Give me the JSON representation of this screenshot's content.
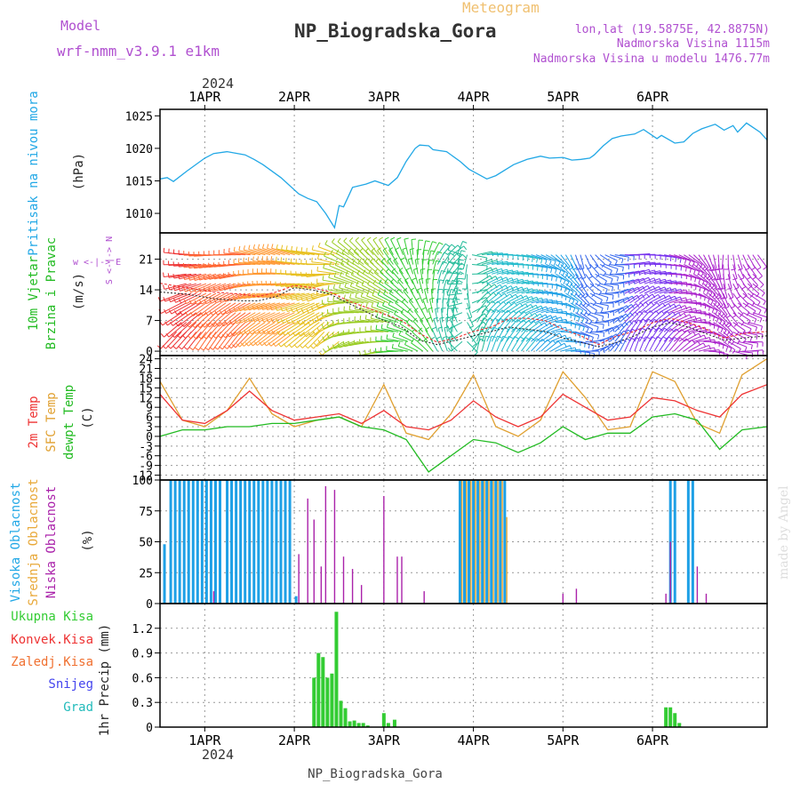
{
  "header": {
    "model_label": "Model",
    "model_name": "wrf-nmm_v3.9.1 e1km",
    "title": "NP_Biogradska_Gora",
    "subtitle": "Meteogram",
    "coords": "lon,lat (19.5875E, 42.8875N)",
    "altitude": "Nadmorska Visina 1115m",
    "model_altitude": "Nadmorska Visina u modelu 1476.77m",
    "year": "2024",
    "footer_title": "NP_Biogradska_Gora",
    "watermark": "made by Angel"
  },
  "colors": {
    "pressure": "#22a8e6",
    "temp2m": "#ee3333",
    "sfc": "#e0a030",
    "dewpt": "#22bb22",
    "high_cloud": "#1ea0e6",
    "mid_cloud": "#e8a838",
    "low_cloud": "#aa22aa",
    "total_precip": "#33cc33",
    "conv_precip": "#ee3333",
    "frz_precip": "#f07030",
    "snow": "#4444ee",
    "hail": "#22bbbb",
    "label_purple": "#b050d0"
  },
  "chart_data": [
    {
      "type": "line",
      "panel": "pressure",
      "ylabel": "Pritisak na nivou mora",
      "unit": "(hPa)",
      "ylim": [
        1007,
        1026
      ],
      "yticks": [
        1010,
        1015,
        1020,
        1025
      ],
      "x_days": [
        0,
        0.08,
        0.15,
        0.3,
        0.5,
        0.6,
        0.75,
        0.95,
        1.05,
        1.15,
        1.35,
        1.55,
        1.65,
        1.75,
        1.85,
        1.95,
        2.0,
        2.05,
        2.15,
        2.3,
        2.4,
        2.55,
        2.65,
        2.75,
        2.85,
        2.9,
        3.0,
        3.05,
        3.2,
        3.35,
        3.45,
        3.65,
        3.75,
        3.95,
        4.1,
        4.25,
        4.35,
        4.5,
        4.6,
        4.7,
        4.8,
        4.85,
        4.95,
        5.05,
        5.15,
        5.3,
        5.4,
        5.55,
        5.6,
        5.75,
        5.85,
        5.95,
        6.05,
        6.2,
        6.3,
        6.4,
        6.45,
        6.55,
        6.7,
        6.78
      ],
      "pressure_hPa": [
        1015.3,
        1015.5,
        1014.9,
        1016.5,
        1018.5,
        1019.2,
        1019.5,
        1019.0,
        1018.3,
        1017.5,
        1015.5,
        1013.0,
        1012.3,
        1011.8,
        1010.0,
        1007.8,
        1011.2,
        1011.0,
        1014.0,
        1014.5,
        1015.0,
        1014.3,
        1015.5,
        1018.0,
        1020.0,
        1020.5,
        1020.4,
        1019.8,
        1019.5,
        1018.0,
        1016.8,
        1015.3,
        1015.8,
        1017.5,
        1018.3,
        1018.8,
        1018.5,
        1018.6,
        1018.2,
        1018.3,
        1018.5,
        1019.0,
        1020.4,
        1021.5,
        1021.9,
        1022.2,
        1022.9,
        1021.5,
        1022.0,
        1020.8,
        1021.0,
        1022.3,
        1023.0,
        1023.7,
        1022.8,
        1023.5,
        1022.5,
        1023.9,
        1022.5,
        1021.3
      ]
    },
    {
      "type": "line",
      "panel": "wind",
      "ylabel": "10m Vjetar Brzina i Pravac",
      "unit": "(m/s)",
      "compass": "w <-|-> E",
      "compass_ns": "S <-|-> N",
      "ylim": [
        -1,
        27
      ],
      "yticks": [
        0,
        7,
        14,
        21
      ],
      "x_days": [
        0,
        0.3,
        0.6,
        0.9,
        1.1,
        1.3,
        1.5,
        1.7,
        1.9,
        2.1,
        2.3,
        2.5,
        2.7,
        2.9,
        3.1,
        3.3,
        3.5,
        3.7,
        3.9,
        4.1,
        4.3,
        4.5,
        4.7,
        4.9,
        5.1,
        5.3,
        5.5,
        5.7,
        5.9,
        6.1,
        6.3,
        6.5,
        6.78
      ],
      "gust_ms": [
        15.5,
        14.5,
        13.5,
        13.0,
        12.5,
        13.5,
        15.0,
        14.5,
        13.5,
        11.5,
        10.0,
        8.5,
        7.0,
        4.0,
        2.0,
        3.0,
        4.5,
        5.5,
        7.5,
        7.5,
        7.0,
        5.0,
        3.5,
        1.5,
        3.5,
        4.5,
        6.5,
        7.5,
        6.5,
        5.0,
        3.0,
        4.0,
        4.5
      ],
      "speed_ms": [
        13.5,
        13.0,
        12.0,
        11.5,
        11.5,
        12.5,
        14.5,
        14.0,
        13.0,
        11.0,
        9.0,
        7.0,
        5.5,
        2.5,
        1.5,
        2.5,
        3.5,
        4.5,
        5.5,
        5.0,
        4.5,
        3.0,
        2.0,
        1.0,
        2.0,
        3.5,
        5.5,
        6.5,
        5.5,
        4.0,
        2.5,
        3.0,
        3.5
      ],
      "direction_deg": [
        210,
        210,
        200,
        205,
        215,
        220,
        220,
        215,
        210,
        240,
        250,
        260,
        270,
        300,
        330,
        350,
        10,
        20,
        30,
        40,
        50,
        80,
        100,
        60,
        30,
        20,
        30,
        40,
        60,
        90,
        120,
        90,
        70
      ]
    },
    {
      "type": "line",
      "panel": "temperature",
      "ylabel": [
        "2m Temp",
        "SFC Temp",
        "dewpt Temp"
      ],
      "unit": "(C)",
      "ylim": [
        -13.5,
        25
      ],
      "yticks": [
        -12,
        -9,
        -6,
        -3,
        0,
        3,
        6,
        9,
        12,
        15,
        18,
        21,
        24
      ],
      "x_days": [
        0,
        0.25,
        0.5,
        0.75,
        1.0,
        1.25,
        1.5,
        1.75,
        2.0,
        2.25,
        2.5,
        2.75,
        3.0,
        3.25,
        3.5,
        3.75,
        4.0,
        4.25,
        4.5,
        4.75,
        5.0,
        5.25,
        5.5,
        5.75,
        6.0,
        6.25,
        6.5,
        6.78
      ],
      "temp2m": [
        13,
        5,
        4,
        8,
        14,
        8,
        5,
        6,
        7,
        4,
        8,
        3,
        2,
        5,
        11,
        6,
        3,
        6,
        13,
        9,
        5,
        6,
        12,
        11,
        8,
        6,
        13,
        16
      ],
      "sfc_temp": [
        17,
        5,
        3,
        8,
        18,
        7,
        3,
        5,
        6,
        3,
        16,
        1,
        -1,
        7,
        19,
        3,
        0,
        5,
        20,
        12,
        2,
        3,
        20,
        17,
        4,
        1,
        19,
        24
      ],
      "dewpt": [
        0,
        2,
        2,
        3,
        3,
        4,
        4,
        5,
        6,
        3,
        2,
        -1,
        -11,
        -6,
        -1,
        -2,
        -5,
        -2,
        3,
        -1,
        1,
        1,
        6,
        7,
        5,
        -4,
        2,
        3
      ]
    },
    {
      "type": "bar",
      "panel": "cloud",
      "ylabel": [
        "Visoka Oblacnost",
        "Srednja Oblacnost",
        "Niska Oblacnost"
      ],
      "unit": "(%)",
      "ylim": [
        0,
        100
      ],
      "yticks": [
        0,
        25,
        50,
        75,
        100
      ],
      "x_days": [
        0.05,
        0.12,
        0.17,
        0.22,
        0.27,
        0.32,
        0.37,
        0.42,
        0.47,
        0.52,
        0.57,
        0.62,
        0.67,
        0.75,
        0.8,
        0.85,
        0.9,
        0.95,
        1.0,
        1.05,
        1.1,
        1.15,
        1.2,
        1.25,
        1.3,
        1.35,
        1.4,
        1.45,
        1.52,
        3.35,
        3.4,
        3.45,
        3.5,
        3.55,
        3.6,
        3.65,
        3.7,
        3.75,
        3.8,
        3.85,
        5.7,
        5.75,
        5.9,
        5.95
      ],
      "high_pct": [
        48,
        100,
        100,
        100,
        100,
        100,
        100,
        100,
        100,
        100,
        100,
        100,
        100,
        100,
        100,
        100,
        100,
        100,
        100,
        100,
        100,
        100,
        100,
        100,
        100,
        100,
        100,
        100,
        6,
        100,
        100,
        100,
        100,
        100,
        100,
        100,
        100,
        100,
        100,
        100,
        100,
        100,
        100,
        100
      ],
      "mid_pct": [
        0,
        0,
        0,
        0,
        0,
        0,
        0,
        0,
        0,
        0,
        0,
        0,
        0,
        0,
        0,
        0,
        0,
        0,
        0,
        0,
        0,
        0,
        0,
        0,
        0,
        0,
        0,
        0,
        0,
        100,
        100,
        100,
        100,
        100,
        100,
        100,
        100,
        100,
        100,
        70,
        0,
        0,
        0,
        0
      ],
      "low_x_days": [
        0.6,
        1.55,
        1.65,
        1.72,
        1.8,
        1.85,
        1.95,
        2.05,
        2.15,
        2.25,
        2.5,
        2.65,
        2.7,
        2.95,
        4.5,
        4.65,
        5.65,
        5.7,
        6.0,
        6.1
      ],
      "low_pct": [
        10,
        40,
        85,
        68,
        30,
        95,
        92,
        38,
        28,
        15,
        87,
        38,
        38,
        10,
        8,
        12,
        8,
        50,
        30,
        8
      ]
    },
    {
      "type": "bar",
      "panel": "precip",
      "ylabel": "1hr Precip",
      "unit": "(mm)",
      "legend": [
        "Ukupna Kisa",
        "Konvek.Kisa",
        "Zaledj.Kisa",
        "Snijeg",
        "Grad"
      ],
      "ylim": [
        0,
        1.5
      ],
      "yticks": [
        0,
        0.3,
        0.6,
        0.9,
        1.2
      ],
      "x_days": [
        1.72,
        1.77,
        1.82,
        1.87,
        1.92,
        1.97,
        2.02,
        2.07,
        2.12,
        2.17,
        2.22,
        2.27,
        2.32,
        2.5,
        2.55,
        2.62,
        5.65,
        5.7,
        5.75,
        5.8
      ],
      "total_mm": [
        0.6,
        0.9,
        0.85,
        0.6,
        0.65,
        1.4,
        0.32,
        0.23,
        0.07,
        0.08,
        0.05,
        0.05,
        0.02,
        0.17,
        0.05,
        0.09,
        0.24,
        0.24,
        0.17,
        0.05
      ]
    }
  ],
  "x_axis": {
    "top_labels": [
      "1APR",
      "2APR",
      "3APR",
      "4APR",
      "5APR",
      "6APR"
    ],
    "bottom_labels": [
      "1APR",
      "2APR",
      "3APR",
      "4APR",
      "5APR",
      "6APR"
    ],
    "day_positions": [
      0.5,
      1.5,
      2.5,
      3.5,
      4.5,
      5.5
    ],
    "x_range_days": [
      0,
      6.78
    ]
  }
}
